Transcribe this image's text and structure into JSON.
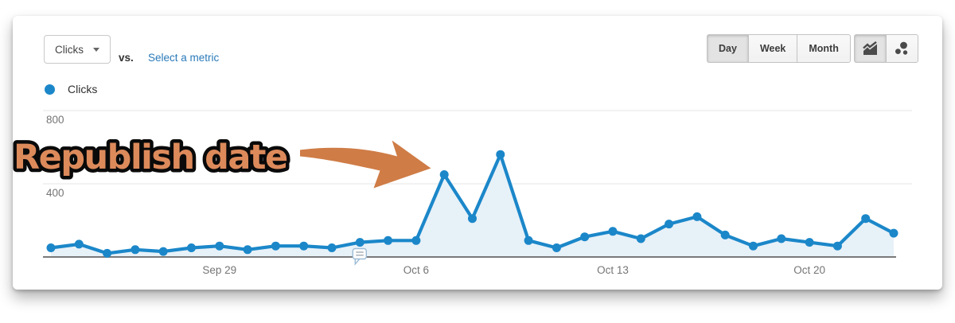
{
  "toolbar": {
    "metric_selector": {
      "label": "Clicks"
    },
    "vs_label": "vs.",
    "select_metric_link": "Select a metric",
    "granularity": [
      {
        "label": "Day",
        "selected": true
      },
      {
        "label": "Week",
        "selected": false
      },
      {
        "label": "Month",
        "selected": false
      }
    ],
    "chart_type": [
      {
        "name": "line-area-chart",
        "selected": true
      },
      {
        "name": "motion-chart",
        "selected": false
      }
    ]
  },
  "legend": {
    "label": "Clicks",
    "color": "#1b87c9"
  },
  "chart_data": {
    "type": "area",
    "series_name": "Clicks",
    "x": [
      "Sep 23",
      "Sep 24",
      "Sep 25",
      "Sep 26",
      "Sep 27",
      "Sep 28",
      "Sep 29",
      "Sep 30",
      "Oct 1",
      "Oct 2",
      "Oct 3",
      "Oct 4",
      "Oct 5",
      "Oct 6",
      "Oct 7",
      "Oct 8",
      "Oct 9",
      "Oct 10",
      "Oct 11",
      "Oct 12",
      "Oct 13",
      "Oct 14",
      "Oct 15",
      "Oct 16",
      "Oct 17",
      "Oct 18",
      "Oct 19",
      "Oct 20",
      "Oct 21",
      "Oct 22",
      "Oct 23"
    ],
    "values": [
      50,
      70,
      20,
      40,
      30,
      50,
      60,
      40,
      60,
      60,
      50,
      80,
      90,
      90,
      450,
      210,
      560,
      90,
      50,
      110,
      140,
      100,
      180,
      220,
      120,
      60,
      100,
      80,
      60,
      210,
      130
    ],
    "xticks": [
      "Sep 29",
      "Oct 6",
      "Oct 13",
      "Oct 20"
    ],
    "yticks": [
      400,
      800
    ],
    "ylim": [
      0,
      1200
    ],
    "grid": true,
    "line_color": "#1b87c9",
    "fill_color": "#e7f1f8",
    "axis_color": "#7a7a7a",
    "annotation_marker_x": "Oct 4"
  },
  "annotation": {
    "text": "Republish date",
    "color": "#dd8a5b",
    "arrow_color": "#cf7c46"
  }
}
